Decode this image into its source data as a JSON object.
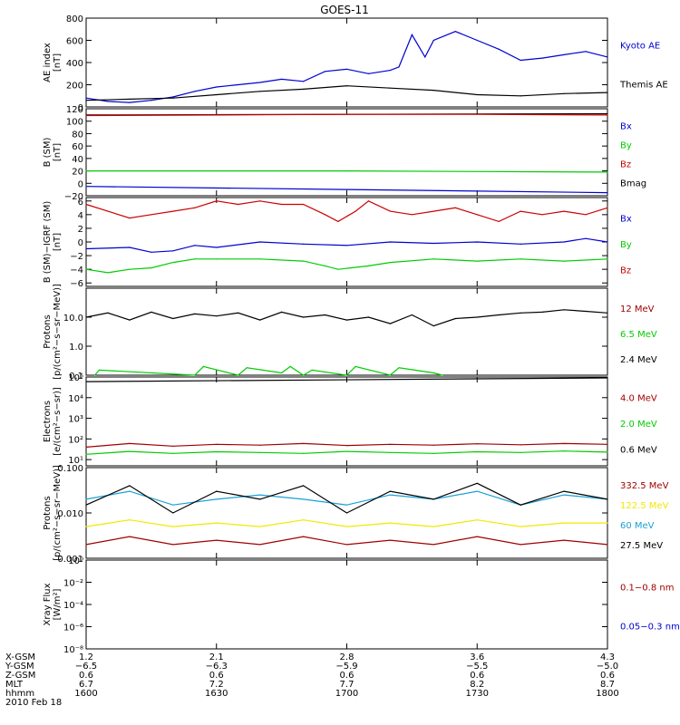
{
  "title": "GOES-11",
  "colors": {
    "black": "#000000",
    "blue": "#0000d0",
    "green": "#00cc00",
    "red": "#cc0000",
    "darkred": "#a00000",
    "yellow": "#f2e800",
    "cyan": "#1aa0d8"
  },
  "chart_data": [
    {
      "id": "ae",
      "type": "line",
      "ylabel": [
        "AE index",
        "[nT]"
      ],
      "scale": "linear",
      "ylim": [
        0,
        800
      ],
      "ticks": [
        "0",
        "200",
        "400",
        "600",
        "800"
      ],
      "tick_values": [
        0,
        200,
        400,
        600,
        800
      ],
      "legend": [
        {
          "label": "Kyoto AE",
          "color": "blue"
        },
        {
          "label": "Themis AE",
          "color": "black"
        }
      ],
      "series": [
        {
          "name": "Kyoto AE",
          "color": "blue",
          "x": [
            0,
            5,
            10,
            15,
            20,
            25,
            30,
            35,
            40,
            45,
            50,
            55,
            60,
            65,
            70,
            72,
            75,
            78,
            80,
            85,
            90,
            95,
            100,
            105,
            110,
            115,
            120
          ],
          "y": [
            80,
            50,
            40,
            60,
            90,
            140,
            180,
            200,
            220,
            250,
            230,
            320,
            340,
            300,
            330,
            360,
            650,
            450,
            600,
            680,
            600,
            520,
            420,
            440,
            470,
            500,
            450
          ]
        },
        {
          "name": "Themis AE",
          "color": "black",
          "x": [
            0,
            10,
            20,
            30,
            40,
            50,
            60,
            70,
            80,
            90,
            100,
            110,
            120
          ],
          "y": [
            60,
            70,
            80,
            110,
            140,
            160,
            190,
            170,
            150,
            110,
            100,
            120,
            130
          ]
        }
      ]
    },
    {
      "id": "bsm",
      "type": "line",
      "ylabel": [
        "B (SM)",
        "[nT]"
      ],
      "scale": "linear",
      "ylim": [
        -20,
        120
      ],
      "ticks": [
        "−20",
        "0",
        "20",
        "40",
        "60",
        "80",
        "100",
        "120"
      ],
      "tick_values": [
        -20,
        0,
        20,
        40,
        60,
        80,
        100,
        120
      ],
      "legend": [
        {
          "label": "Bx",
          "color": "blue"
        },
        {
          "label": "By",
          "color": "green"
        },
        {
          "label": "Bz",
          "color": "red"
        },
        {
          "label": "Bmag",
          "color": "black"
        }
      ],
      "series": [
        {
          "name": "Bmag",
          "color": "black",
          "x": [
            0,
            120
          ],
          "y": [
            110,
            112
          ]
        },
        {
          "name": "Bz",
          "color": "red",
          "x": [
            0,
            30,
            60,
            90,
            120
          ],
          "y": [
            109,
            110,
            111,
            111,
            110
          ]
        },
        {
          "name": "By",
          "color": "green",
          "x": [
            0,
            60,
            120
          ],
          "y": [
            20,
            20,
            18
          ]
        },
        {
          "name": "Bx",
          "color": "blue",
          "x": [
            0,
            60,
            120
          ],
          "y": [
            -5,
            -10,
            -15
          ]
        }
      ]
    },
    {
      "id": "bigrf",
      "type": "line",
      "ylabel": [
        "B (SM)−IGRF (SM)",
        "[nT]"
      ],
      "scale": "linear",
      "ylim": [
        -6.5,
        6.5
      ],
      "ticks": [
        "−6",
        "−4",
        "−2",
        "0",
        "2",
        "4",
        "6"
      ],
      "tick_values": [
        -6,
        -4,
        -2,
        0,
        2,
        4,
        6
      ],
      "legend": [
        {
          "label": "Bx",
          "color": "blue"
        },
        {
          "label": "By",
          "color": "green"
        },
        {
          "label": "Bz",
          "color": "red"
        }
      ],
      "series": [
        {
          "name": "Bz",
          "color": "red",
          "x": [
            0,
            5,
            10,
            15,
            20,
            25,
            30,
            35,
            40,
            45,
            50,
            55,
            58,
            62,
            65,
            70,
            75,
            80,
            85,
            90,
            95,
            100,
            105,
            110,
            115,
            120
          ],
          "y": [
            5.5,
            4.5,
            3.5,
            4,
            4.5,
            5,
            6,
            5.5,
            6,
            5.5,
            5.5,
            4,
            3,
            4.5,
            6,
            4.5,
            4,
            4.5,
            5,
            4,
            3,
            4.5,
            4,
            4.5,
            4,
            5
          ]
        },
        {
          "name": "Bx",
          "color": "blue",
          "x": [
            0,
            10,
            15,
            20,
            25,
            30,
            40,
            50,
            60,
            70,
            80,
            90,
            100,
            110,
            115,
            120
          ],
          "y": [
            -1,
            -0.8,
            -1.5,
            -1.3,
            -0.5,
            -0.8,
            0,
            -0.3,
            -0.5,
            0,
            -0.2,
            0,
            -0.3,
            0,
            0.5,
            0
          ]
        },
        {
          "name": "By",
          "color": "green",
          "x": [
            0,
            5,
            10,
            15,
            20,
            25,
            30,
            40,
            50,
            55,
            58,
            65,
            70,
            80,
            90,
            100,
            110,
            120
          ],
          "y": [
            -4,
            -4.5,
            -4,
            -3.8,
            -3,
            -2.5,
            -2.5,
            -2.5,
            -2.8,
            -3.5,
            -4,
            -3.5,
            -3,
            -2.5,
            -2.8,
            -2.5,
            -2.8,
            -2.5
          ]
        }
      ]
    },
    {
      "id": "protons_low",
      "type": "line",
      "ylabel": [
        "Protons",
        "[p/(cm²−s−sr−MeV)]"
      ],
      "scale": "log",
      "ylim": [
        0.1,
        100
      ],
      "ticks": [
        "0.1",
        "1.0",
        "10.0"
      ],
      "tick_values": [
        0.1,
        1,
        10
      ],
      "legend": [
        {
          "label": "12 MeV",
          "color": "darkred"
        },
        {
          "label": "6.5 MeV",
          "color": "green"
        },
        {
          "label": "2.4 MeV",
          "color": "black"
        }
      ],
      "series": [
        {
          "name": "2.4 MeV",
          "color": "black",
          "x": [
            0,
            5,
            10,
            15,
            20,
            25,
            30,
            35,
            40,
            45,
            50,
            55,
            60,
            65,
            70,
            75,
            80,
            85,
            90,
            95,
            100,
            105,
            110,
            115,
            120
          ],
          "y": [
            10,
            14,
            8,
            15,
            9,
            13,
            11,
            14,
            8,
            15,
            10,
            12,
            8,
            10,
            6,
            12,
            5,
            9,
            10,
            12,
            14,
            15,
            18,
            16,
            14
          ]
        },
        {
          "name": "6.5 MeV",
          "color": "green",
          "x": [
            2,
            3,
            25,
            27,
            35,
            37,
            45,
            47,
            50,
            52,
            60,
            62,
            70,
            72,
            80,
            82
          ],
          "y": [
            0.1,
            0.15,
            0.1,
            0.2,
            0.1,
            0.18,
            0.12,
            0.2,
            0.1,
            0.15,
            0.1,
            0.2,
            0.1,
            0.18,
            0.12,
            0.1
          ]
        }
      ]
    },
    {
      "id": "electrons",
      "type": "line",
      "ylabel": [
        "Electrons",
        "[e/(cm²−s−sr)]"
      ],
      "scale": "log",
      "ylim": [
        5,
        100000
      ],
      "ticks": [
        "10¹",
        "10²",
        "10³",
        "10⁴",
        "10⁵"
      ],
      "tick_values": [
        10,
        100,
        1000,
        10000,
        100000
      ],
      "legend": [
        {
          "label": "4.0 MeV",
          "color": "darkred"
        },
        {
          "label": "2.0 MeV",
          "color": "green"
        },
        {
          "label": "0.6 MeV",
          "color": "black"
        }
      ],
      "series": [
        {
          "name": "0.6 MeV",
          "color": "black",
          "x": [
            0,
            120
          ],
          "y": [
            60000,
            90000
          ]
        },
        {
          "name": "4.0 MeV",
          "color": "darkred",
          "x": [
            0,
            10,
            20,
            30,
            40,
            50,
            60,
            70,
            80,
            90,
            100,
            110,
            120
          ],
          "y": [
            40,
            60,
            45,
            55,
            50,
            60,
            48,
            55,
            50,
            58,
            52,
            60,
            55
          ]
        },
        {
          "name": "2.0 MeV",
          "color": "green",
          "x": [
            0,
            10,
            20,
            30,
            40,
            50,
            60,
            70,
            80,
            90,
            100,
            110,
            120
          ],
          "y": [
            18,
            25,
            20,
            24,
            22,
            20,
            25,
            22,
            20,
            24,
            22,
            26,
            23
          ]
        }
      ]
    },
    {
      "id": "protons_high",
      "type": "line",
      "ylabel": [
        "Protons",
        "[p/(cm²−s−sr−MeV)]"
      ],
      "scale": "log",
      "ylim": [
        0.001,
        0.1
      ],
      "ticks": [
        "0.001",
        "0.010",
        "0.100"
      ],
      "tick_values": [
        0.001,
        0.01,
        0.1
      ],
      "legend": [
        {
          "label": "332.5 MeV",
          "color": "darkred"
        },
        {
          "label": "122.5 MeV",
          "color": "yellow"
        },
        {
          "label": "60 MeV",
          "color": "cyan"
        },
        {
          "label": "27.5 MeV",
          "color": "black"
        }
      ],
      "series": [
        {
          "name": "332.5 MeV",
          "color": "darkred",
          "x": [
            0,
            10,
            20,
            30,
            40,
            50,
            60,
            70,
            80,
            90,
            100,
            110,
            120
          ],
          "y": [
            0.002,
            0.003,
            0.002,
            0.0025,
            0.002,
            0.003,
            0.002,
            0.0025,
            0.002,
            0.003,
            0.002,
            0.0025,
            0.002
          ]
        },
        {
          "name": "122.5 MeV",
          "color": "yellow",
          "x": [
            0,
            10,
            20,
            30,
            40,
            50,
            60,
            70,
            80,
            90,
            100,
            110,
            120
          ],
          "y": [
            0.005,
            0.007,
            0.005,
            0.006,
            0.005,
            0.007,
            0.005,
            0.006,
            0.005,
            0.007,
            0.005,
            0.006,
            0.006
          ]
        },
        {
          "name": "60 MeV",
          "color": "cyan",
          "x": [
            0,
            10,
            20,
            30,
            40,
            50,
            60,
            70,
            80,
            90,
            100,
            110,
            120
          ],
          "y": [
            0.02,
            0.03,
            0.015,
            0.02,
            0.025,
            0.02,
            0.015,
            0.025,
            0.02,
            0.03,
            0.015,
            0.025,
            0.02
          ]
        },
        {
          "name": "27.5 MeV",
          "color": "black",
          "x": [
            0,
            10,
            20,
            30,
            40,
            50,
            60,
            70,
            80,
            90,
            100,
            110,
            120
          ],
          "y": [
            0.015,
            0.04,
            0.01,
            0.03,
            0.02,
            0.04,
            0.01,
            0.03,
            0.02,
            0.045,
            0.015,
            0.03,
            0.02
          ]
        }
      ]
    },
    {
      "id": "xray",
      "type": "line",
      "ylabel": [
        "Xray  Flux",
        "[W/m²]"
      ],
      "scale": "log",
      "ylim": [
        1e-08,
        1
      ],
      "ticks": [
        "10⁻⁸",
        "10⁻⁶",
        "10⁻⁴",
        "10⁻²",
        "10⁰"
      ],
      "tick_values": [
        1e-08,
        1e-06,
        0.0001,
        0.01,
        1
      ],
      "legend": [
        {
          "label": "0.1−0.8 nm",
          "color": "darkred"
        },
        {
          "label": "0.05−0.3 nm",
          "color": "blue"
        }
      ],
      "series": []
    }
  ],
  "footer": {
    "labels": [
      "X-GSM",
      "Y-GSM",
      "Z-GSM",
      "MLT",
      "hhmm",
      "2010 Feb 18"
    ],
    "rows": [
      [
        "1.2",
        "2.1",
        "2.8",
        "3.6",
        "4.3"
      ],
      [
        "−6.5",
        "−6.3",
        "−5.9",
        "−5.5",
        "−5.0"
      ],
      [
        "0.6",
        "0.6",
        "0.6",
        "0.6",
        "0.6"
      ],
      [
        "6.7",
        "7.2",
        "7.7",
        "8.2",
        "8.7"
      ],
      [
        "1600",
        "1630",
        "1700",
        "1730",
        "1800"
      ]
    ]
  }
}
